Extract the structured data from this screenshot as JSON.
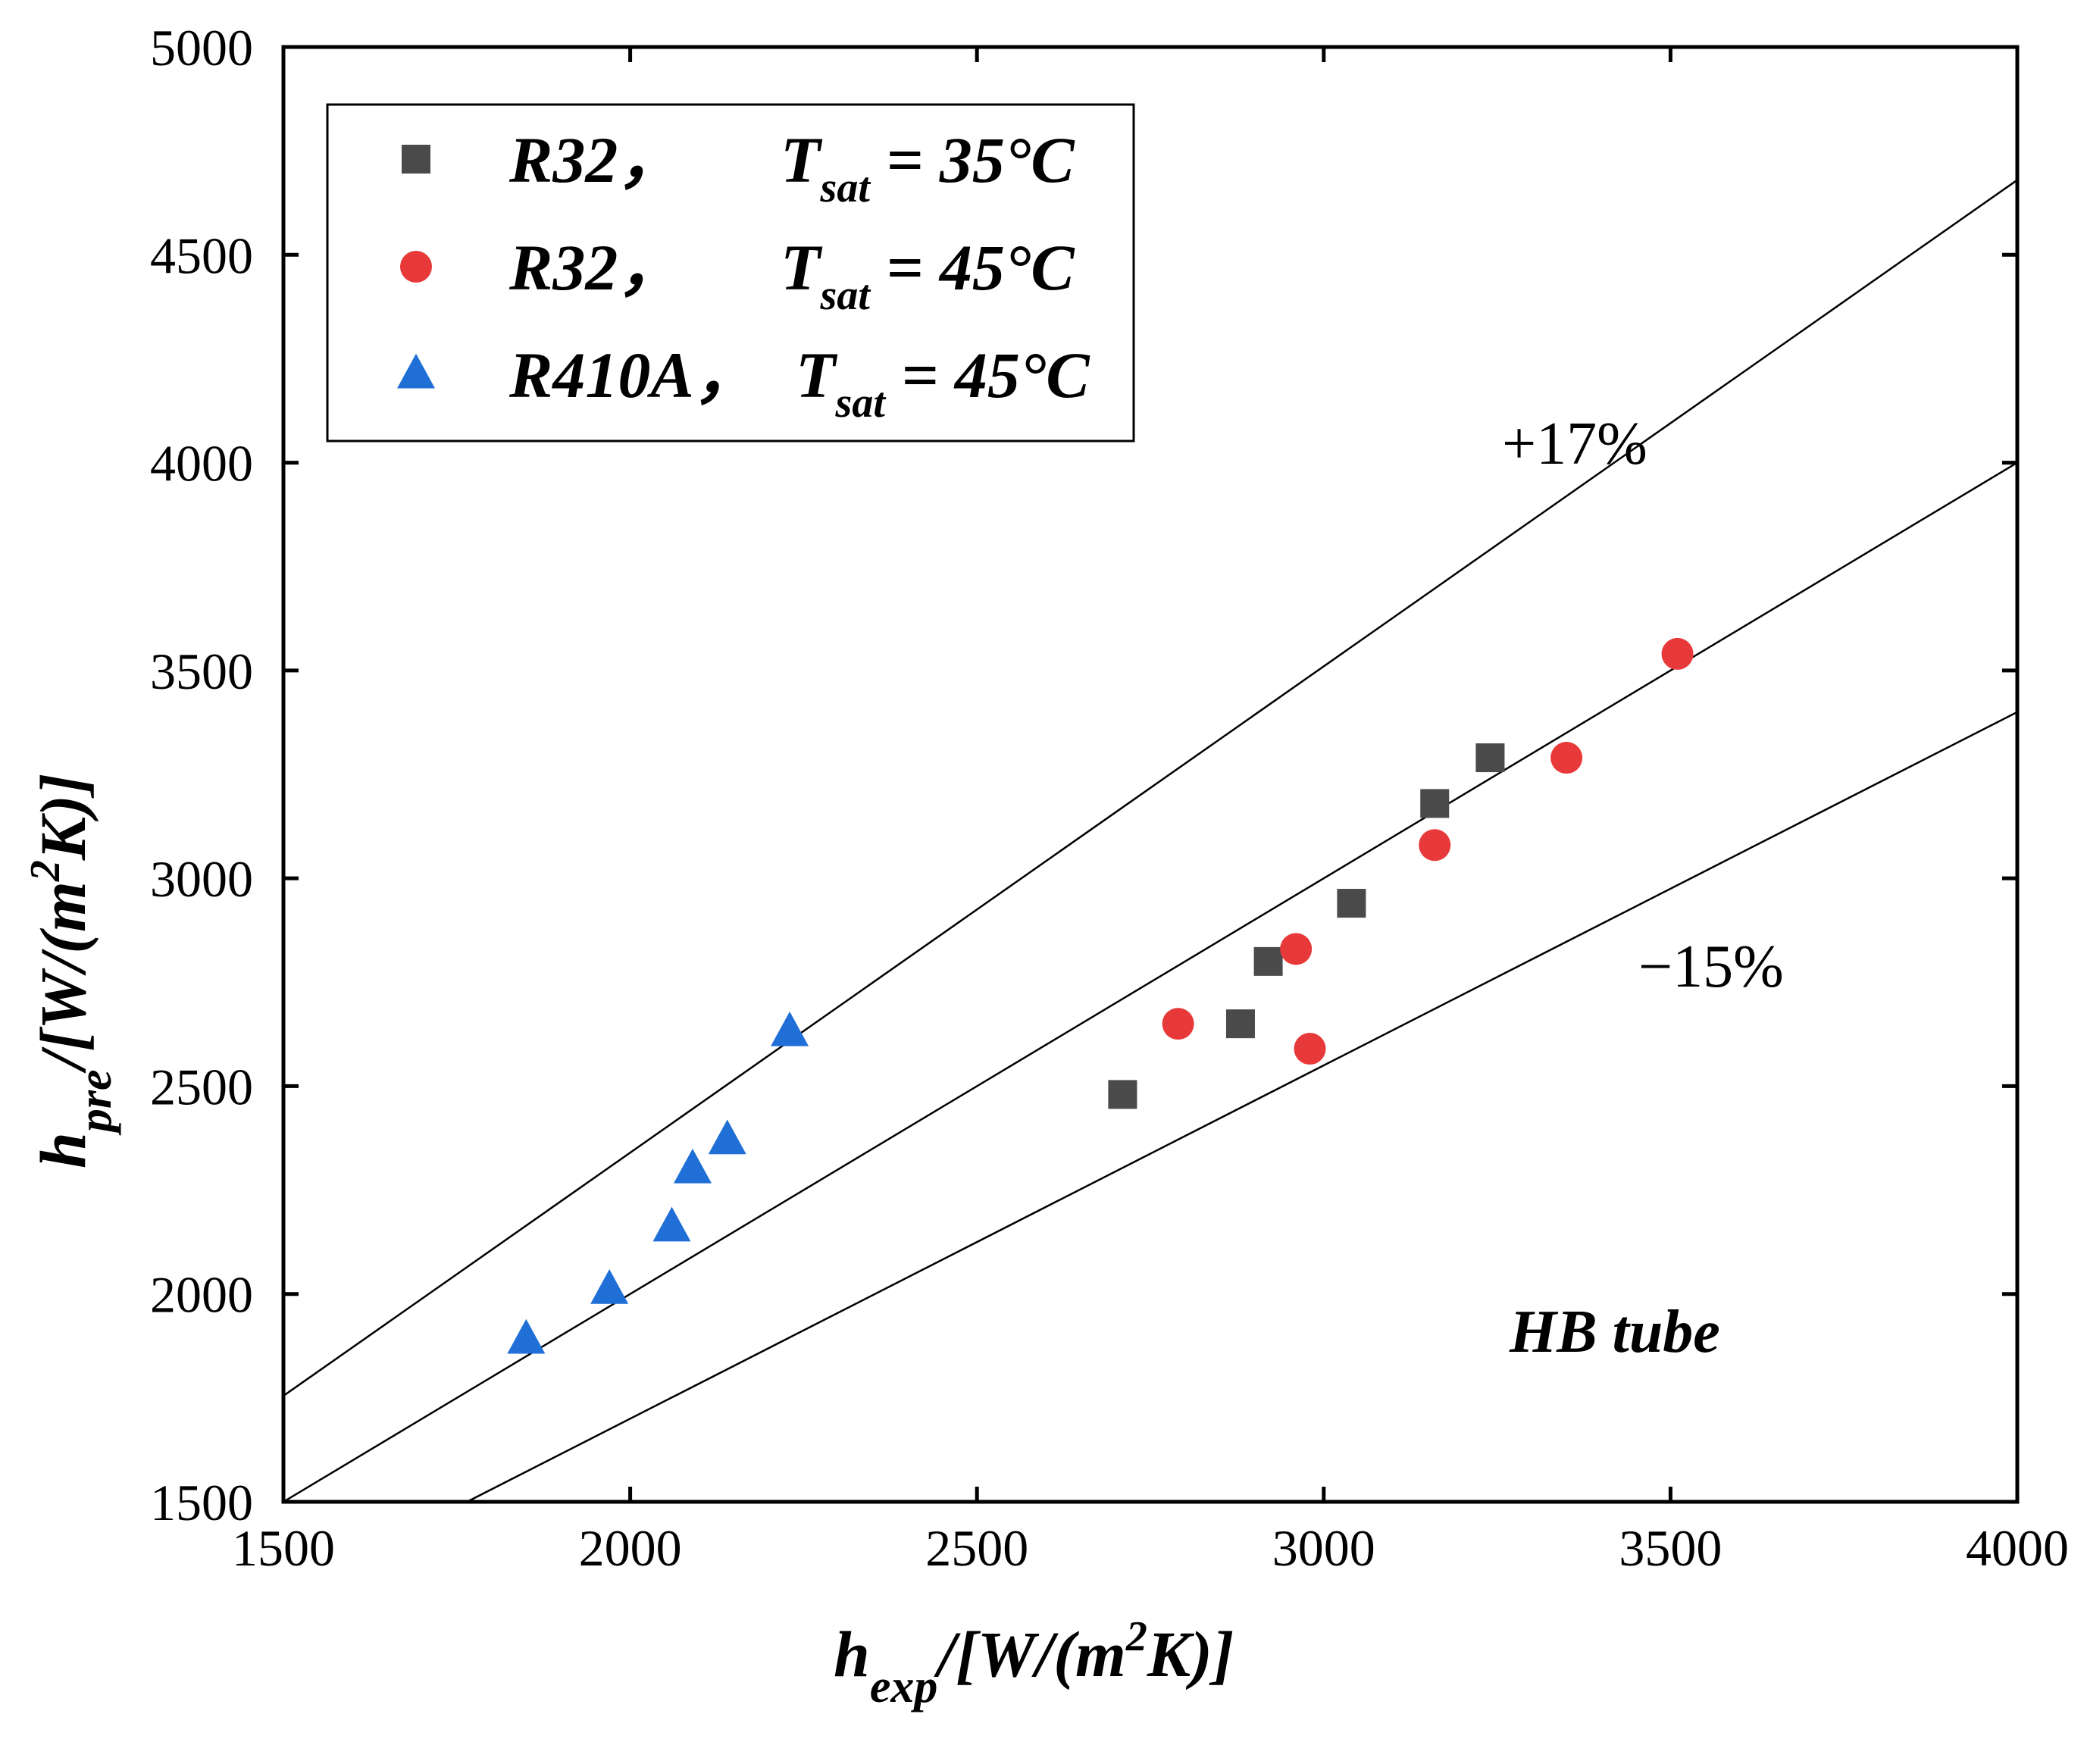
{
  "chart_data": {
    "type": "scatter",
    "title": "",
    "xlabel": {
      "base": "h",
      "sub": "exp",
      "unit_pre": "/[W/(m",
      "sup": "2",
      "unit_post": "K)]"
    },
    "ylabel": {
      "base": "h",
      "sub": "pre",
      "unit_pre": "/[W/(m",
      "sup": "2",
      "unit_post": "K)]"
    },
    "xlim": [
      1500,
      4000
    ],
    "ylim": [
      1500,
      5000
    ],
    "xticks": [
      1500,
      2000,
      2500,
      3000,
      3500,
      4000
    ],
    "yticks": [
      1500,
      2000,
      2500,
      3000,
      3500,
      4000,
      4500,
      5000
    ],
    "grid": false,
    "legend_position": "top-left",
    "series": [
      {
        "name": "R32，  Tsat = 35°C",
        "legend": {
          "refrigerant": "R32，",
          "t_base": "T",
          "t_sub": "sat",
          "t_value": " = 35°C"
        },
        "marker": "square",
        "color": "#4a4a4a",
        "x": [
          2710,
          2880,
          2920,
          3040,
          3160,
          3240
        ],
        "y": [
          2480,
          2650,
          2800,
          2940,
          3180,
          3290
        ]
      },
      {
        "name": "R32，  Tsat = 45°C",
        "legend": {
          "refrigerant": "R32，",
          "t_base": "T",
          "t_sub": "sat",
          "t_value": " = 45°C"
        },
        "marker": "circle",
        "color": "#e8393a",
        "x": [
          2790,
          2960,
          2980,
          3160,
          3350,
          3510
        ],
        "y": [
          2650,
          2830,
          2590,
          3080,
          3290,
          3540
        ]
      },
      {
        "name": "R410A，Tsat = 45°C",
        "legend": {
          "refrigerant": "R410A，",
          "t_base": "T",
          "t_sub": "sat",
          "t_value": " = 45°C"
        },
        "marker": "triangle",
        "color": "#1f6fd6",
        "x": [
          1850,
          1970,
          2060,
          2090,
          2140,
          2230
        ],
        "y": [
          1890,
          2010,
          2160,
          2300,
          2370,
          2630
        ]
      }
    ],
    "reference_lines": [
      {
        "label": "+17%",
        "factor": 1.17
      },
      {
        "label": "",
        "factor": 1.0
      },
      {
        "label": "−15%",
        "factor": 0.85
      }
    ],
    "annotation": "HB tube"
  }
}
